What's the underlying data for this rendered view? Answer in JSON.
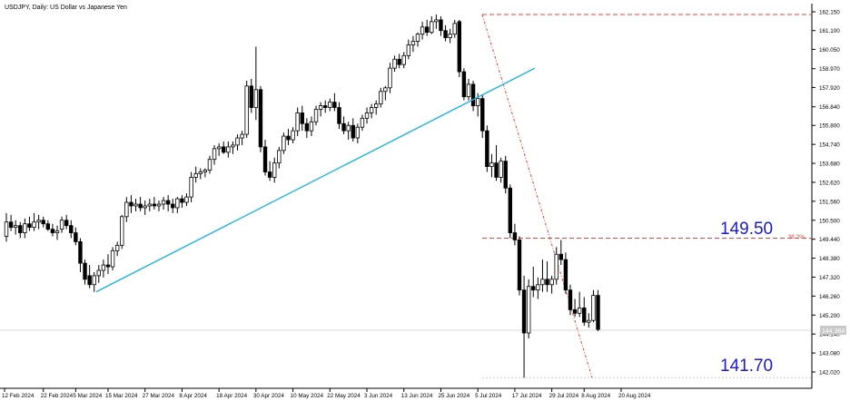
{
  "symbol_header": "USDJPY, Daily:  US Dollar vs Japanese Yen",
  "annotations": {
    "upper_level_label": "149.50",
    "lower_level_label": "141.70",
    "fib_label": "38.2%",
    "price_tag": "144.364"
  },
  "colors": {
    "background": "#ffffff",
    "candle": "#000000",
    "trendline": "#1fb4e6",
    "dashed_level": "#e2443e",
    "fib_diagonal": "#e2443e",
    "level_text": "#1a1acc",
    "price_tag_bg": "#c8c8c8",
    "axis_text": "#000000"
  },
  "chart_data": {
    "type": "candlestick",
    "title": "USDJPY, Daily:  US Dollar vs Japanese Yen",
    "y_axis_ticks": [
      "162.150",
      "161.100",
      "160.050",
      "158.970",
      "157.920",
      "156.840",
      "155.800",
      "154.740",
      "153.680",
      "152.620",
      "151.560",
      "150.500",
      "149.440",
      "148.380",
      "147.320",
      "146.260",
      "145.200",
      "144.140",
      "143.080",
      "142.020"
    ],
    "x_axis_ticks": [
      "12 Feb 2024",
      "22 Feb 2024",
      "5 Mar 2024",
      "15 Mar 2024",
      "27 Mar 2024",
      "8 Apr 2024",
      "18 Apr 2024",
      "30 Apr 2024",
      "10 May 2024",
      "22 May 2024",
      "3 Jun 2024",
      "13 Jun 2024",
      "25 Jun 2024",
      "5 Jul 2024",
      "17 Jul 2024",
      "29 Jul 2024",
      "8 Aug 2024",
      "20 Aug 2024"
    ],
    "ylim": [
      141.6,
      162.6
    ],
    "grid": false,
    "levels": {
      "upper_dashed": 162.0,
      "fib_38_2": 149.5,
      "low_dashed": 141.7,
      "current_price": 144.364
    },
    "trendline": {
      "start": {
        "date": "5 Mar 2024",
        "price": 146.5
      },
      "end": {
        "date": "16 Jul 2024",
        "price": 159.0
      }
    },
    "fib_diagonal": {
      "start": {
        "date": "3 Jul 2024",
        "price": 162.0
      },
      "end": {
        "date": "5 Aug 2024",
        "price": 141.7
      }
    },
    "ohlc": [
      {
        "o": 149.6,
        "h": 150.9,
        "l": 149.3,
        "c": 150.4
      },
      {
        "o": 150.4,
        "h": 150.8,
        "l": 149.9,
        "c": 150.1
      },
      {
        "o": 150.1,
        "h": 150.5,
        "l": 149.7,
        "c": 150.2
      },
      {
        "o": 150.2,
        "h": 150.4,
        "l": 149.5,
        "c": 149.8
      },
      {
        "o": 149.8,
        "h": 150.6,
        "l": 149.5,
        "c": 150.3
      },
      {
        "o": 150.3,
        "h": 150.7,
        "l": 149.9,
        "c": 150.1
      },
      {
        "o": 150.1,
        "h": 150.9,
        "l": 149.9,
        "c": 150.4
      },
      {
        "o": 150.4,
        "h": 150.8,
        "l": 150.0,
        "c": 150.5
      },
      {
        "o": 150.5,
        "h": 150.7,
        "l": 150.1,
        "c": 150.3
      },
      {
        "o": 150.3,
        "h": 150.5,
        "l": 149.9,
        "c": 150.0
      },
      {
        "o": 150.0,
        "h": 150.3,
        "l": 149.6,
        "c": 149.8
      },
      {
        "o": 149.8,
        "h": 150.2,
        "l": 149.4,
        "c": 149.9
      },
      {
        "o": 150.0,
        "h": 150.7,
        "l": 149.8,
        "c": 150.5
      },
      {
        "o": 150.5,
        "h": 150.8,
        "l": 150.0,
        "c": 150.2
      },
      {
        "o": 150.2,
        "h": 150.5,
        "l": 149.5,
        "c": 149.8
      },
      {
        "o": 149.8,
        "h": 150.1,
        "l": 149.1,
        "c": 149.3
      },
      {
        "o": 149.3,
        "h": 149.5,
        "l": 147.6,
        "c": 148.1
      },
      {
        "o": 148.1,
        "h": 148.3,
        "l": 146.9,
        "c": 147.2
      },
      {
        "o": 147.4,
        "h": 148.0,
        "l": 146.7,
        "c": 146.9
      },
      {
        "o": 146.9,
        "h": 147.6,
        "l": 146.5,
        "c": 147.4
      },
      {
        "o": 147.4,
        "h": 148.0,
        "l": 147.0,
        "c": 147.7
      },
      {
        "o": 147.7,
        "h": 148.3,
        "l": 147.3,
        "c": 148.0
      },
      {
        "o": 148.0,
        "h": 148.6,
        "l": 147.5,
        "c": 147.9
      },
      {
        "o": 147.9,
        "h": 149.0,
        "l": 147.7,
        "c": 148.8
      },
      {
        "o": 148.8,
        "h": 149.3,
        "l": 148.5,
        "c": 149.1
      },
      {
        "o": 149.1,
        "h": 150.8,
        "l": 148.9,
        "c": 150.7
      },
      {
        "o": 150.7,
        "h": 151.8,
        "l": 150.4,
        "c": 151.5
      },
      {
        "o": 151.5,
        "h": 151.9,
        "l": 150.9,
        "c": 151.3
      },
      {
        "o": 151.3,
        "h": 151.7,
        "l": 151.0,
        "c": 151.4
      },
      {
        "o": 151.4,
        "h": 151.8,
        "l": 151.0,
        "c": 151.2
      },
      {
        "o": 151.2,
        "h": 151.6,
        "l": 150.8,
        "c": 151.3
      },
      {
        "o": 151.3,
        "h": 151.7,
        "l": 151.0,
        "c": 151.4
      },
      {
        "o": 151.4,
        "h": 151.8,
        "l": 151.1,
        "c": 151.3
      },
      {
        "o": 151.3,
        "h": 151.6,
        "l": 151.0,
        "c": 151.4
      },
      {
        "o": 151.4,
        "h": 151.8,
        "l": 151.1,
        "c": 151.6
      },
      {
        "o": 151.6,
        "h": 151.9,
        "l": 151.0,
        "c": 151.4
      },
      {
        "o": 151.4,
        "h": 151.7,
        "l": 150.9,
        "c": 151.2
      },
      {
        "o": 151.2,
        "h": 151.8,
        "l": 150.9,
        "c": 151.7
      },
      {
        "o": 151.7,
        "h": 151.9,
        "l": 151.2,
        "c": 151.5
      },
      {
        "o": 151.5,
        "h": 152.0,
        "l": 151.3,
        "c": 151.8
      },
      {
        "o": 151.8,
        "h": 153.2,
        "l": 151.5,
        "c": 152.9
      },
      {
        "o": 152.9,
        "h": 153.5,
        "l": 152.6,
        "c": 153.1
      },
      {
        "o": 153.1,
        "h": 153.4,
        "l": 152.8,
        "c": 153.2
      },
      {
        "o": 153.2,
        "h": 153.4,
        "l": 152.9,
        "c": 153.3
      },
      {
        "o": 153.3,
        "h": 154.1,
        "l": 153.1,
        "c": 153.9
      },
      {
        "o": 153.9,
        "h": 154.7,
        "l": 153.6,
        "c": 154.5
      },
      {
        "o": 154.5,
        "h": 154.8,
        "l": 154.1,
        "c": 154.6
      },
      {
        "o": 154.6,
        "h": 154.9,
        "l": 154.2,
        "c": 154.3
      },
      {
        "o": 154.3,
        "h": 154.9,
        "l": 154.0,
        "c": 154.6
      },
      {
        "o": 154.6,
        "h": 154.9,
        "l": 154.2,
        "c": 154.7
      },
      {
        "o": 154.7,
        "h": 155.3,
        "l": 154.4,
        "c": 155.1
      },
      {
        "o": 155.1,
        "h": 155.5,
        "l": 154.7,
        "c": 155.3
      },
      {
        "o": 155.3,
        "h": 158.3,
        "l": 155.1,
        "c": 158.0
      },
      {
        "o": 158.0,
        "h": 158.4,
        "l": 156.5,
        "c": 156.8
      },
      {
        "o": 156.8,
        "h": 160.2,
        "l": 156.1,
        "c": 157.8
      },
      {
        "o": 157.8,
        "h": 158.0,
        "l": 154.3,
        "c": 154.6
      },
      {
        "o": 154.6,
        "h": 155.0,
        "l": 153.0,
        "c": 153.2
      },
      {
        "o": 153.2,
        "h": 153.8,
        "l": 152.7,
        "c": 152.9
      },
      {
        "o": 152.9,
        "h": 154.0,
        "l": 152.6,
        "c": 153.7
      },
      {
        "o": 153.7,
        "h": 154.6,
        "l": 153.4,
        "c": 154.4
      },
      {
        "o": 154.4,
        "h": 155.4,
        "l": 154.2,
        "c": 155.2
      },
      {
        "o": 155.2,
        "h": 155.6,
        "l": 154.7,
        "c": 155.0
      },
      {
        "o": 155.0,
        "h": 155.7,
        "l": 154.8,
        "c": 155.5
      },
      {
        "o": 155.5,
        "h": 156.8,
        "l": 155.2,
        "c": 156.5
      },
      {
        "o": 156.5,
        "h": 156.9,
        "l": 155.5,
        "c": 155.9
      },
      {
        "o": 155.9,
        "h": 156.2,
        "l": 155.1,
        "c": 155.5
      },
      {
        "o": 155.5,
        "h": 156.3,
        "l": 155.2,
        "c": 156.0
      },
      {
        "o": 156.0,
        "h": 156.9,
        "l": 155.8,
        "c": 156.7
      },
      {
        "o": 156.7,
        "h": 157.1,
        "l": 156.3,
        "c": 156.9
      },
      {
        "o": 156.9,
        "h": 157.2,
        "l": 156.5,
        "c": 156.8
      },
      {
        "o": 156.8,
        "h": 157.3,
        "l": 156.6,
        "c": 157.1
      },
      {
        "o": 157.1,
        "h": 157.6,
        "l": 156.6,
        "c": 156.8
      },
      {
        "o": 156.8,
        "h": 157.1,
        "l": 155.6,
        "c": 155.9
      },
      {
        "o": 155.9,
        "h": 156.3,
        "l": 155.3,
        "c": 155.5
      },
      {
        "o": 155.5,
        "h": 156.0,
        "l": 155.0,
        "c": 155.8
      },
      {
        "o": 155.8,
        "h": 156.2,
        "l": 154.9,
        "c": 155.1
      },
      {
        "o": 155.1,
        "h": 155.9,
        "l": 154.8,
        "c": 155.7
      },
      {
        "o": 155.7,
        "h": 156.4,
        "l": 155.5,
        "c": 156.2
      },
      {
        "o": 156.2,
        "h": 156.8,
        "l": 155.9,
        "c": 156.5
      },
      {
        "o": 156.5,
        "h": 157.0,
        "l": 156.2,
        "c": 156.8
      },
      {
        "o": 156.8,
        "h": 157.2,
        "l": 156.4,
        "c": 157.0
      },
      {
        "o": 157.0,
        "h": 157.9,
        "l": 156.8,
        "c": 157.7
      },
      {
        "o": 157.7,
        "h": 158.0,
        "l": 157.2,
        "c": 157.9
      },
      {
        "o": 157.9,
        "h": 159.3,
        "l": 157.6,
        "c": 159.0
      },
      {
        "o": 159.0,
        "h": 159.7,
        "l": 158.8,
        "c": 159.5
      },
      {
        "o": 159.5,
        "h": 159.8,
        "l": 159.0,
        "c": 159.2
      },
      {
        "o": 159.2,
        "h": 159.9,
        "l": 159.0,
        "c": 159.7
      },
      {
        "o": 159.7,
        "h": 160.6,
        "l": 159.5,
        "c": 160.3
      },
      {
        "o": 160.3,
        "h": 160.8,
        "l": 159.9,
        "c": 160.5
      },
      {
        "o": 160.5,
        "h": 161.0,
        "l": 160.2,
        "c": 160.9
      },
      {
        "o": 160.9,
        "h": 161.6,
        "l": 160.6,
        "c": 161.3
      },
      {
        "o": 161.3,
        "h": 161.7,
        "l": 160.8,
        "c": 161.0
      },
      {
        "o": 161.0,
        "h": 161.9,
        "l": 160.9,
        "c": 161.6
      },
      {
        "o": 161.6,
        "h": 162.0,
        "l": 161.2,
        "c": 161.7
      },
      {
        "o": 161.7,
        "h": 161.9,
        "l": 160.8,
        "c": 161.1
      },
      {
        "o": 161.1,
        "h": 161.4,
        "l": 160.5,
        "c": 160.7
      },
      {
        "o": 160.7,
        "h": 161.2,
        "l": 160.4,
        "c": 160.9
      },
      {
        "o": 160.9,
        "h": 161.7,
        "l": 160.7,
        "c": 161.5
      },
      {
        "o": 161.6,
        "h": 161.7,
        "l": 158.5,
        "c": 158.8
      },
      {
        "o": 158.8,
        "h": 159.0,
        "l": 157.2,
        "c": 157.4
      },
      {
        "o": 157.4,
        "h": 158.4,
        "l": 157.2,
        "c": 158.1
      },
      {
        "o": 158.1,
        "h": 158.3,
        "l": 156.6,
        "c": 156.9
      },
      {
        "o": 156.9,
        "h": 157.6,
        "l": 156.3,
        "c": 157.3
      },
      {
        "o": 157.3,
        "h": 157.5,
        "l": 155.1,
        "c": 155.5
      },
      {
        "o": 155.5,
        "h": 155.8,
        "l": 153.2,
        "c": 153.5
      },
      {
        "o": 153.5,
        "h": 154.2,
        "l": 152.9,
        "c": 153.7
      },
      {
        "o": 153.7,
        "h": 154.7,
        "l": 152.7,
        "c": 152.9
      },
      {
        "o": 152.9,
        "h": 154.0,
        "l": 152.6,
        "c": 153.8
      },
      {
        "o": 153.8,
        "h": 154.1,
        "l": 152.0,
        "c": 152.3
      },
      {
        "o": 152.3,
        "h": 152.5,
        "l": 149.5,
        "c": 149.8
      },
      {
        "o": 149.8,
        "h": 150.3,
        "l": 149.1,
        "c": 149.4
      },
      {
        "o": 149.4,
        "h": 149.6,
        "l": 146.3,
        "c": 146.6
      },
      {
        "o": 146.6,
        "h": 147.4,
        "l": 141.7,
        "c": 144.2
      },
      {
        "o": 144.2,
        "h": 147.2,
        "l": 143.9,
        "c": 146.8
      },
      {
        "o": 146.8,
        "h": 147.9,
        "l": 146.2,
        "c": 146.6
      },
      {
        "o": 146.6,
        "h": 147.3,
        "l": 146.1,
        "c": 146.9
      },
      {
        "o": 146.9,
        "h": 148.3,
        "l": 146.5,
        "c": 147.2
      },
      {
        "o": 147.2,
        "h": 148.2,
        "l": 146.5,
        "c": 146.9
      },
      {
        "o": 146.9,
        "h": 147.4,
        "l": 146.4,
        "c": 147.2
      },
      {
        "o": 147.2,
        "h": 149.0,
        "l": 146.9,
        "c": 148.6
      },
      {
        "o": 148.6,
        "h": 149.4,
        "l": 148.0,
        "c": 148.3
      },
      {
        "o": 148.3,
        "h": 148.7,
        "l": 146.4,
        "c": 146.6
      },
      {
        "o": 146.6,
        "h": 146.9,
        "l": 145.2,
        "c": 145.5
      },
      {
        "o": 145.5,
        "h": 146.1,
        "l": 145.1,
        "c": 145.3
      },
      {
        "o": 145.3,
        "h": 146.5,
        "l": 145.1,
        "c": 145.6
      },
      {
        "o": 145.6,
        "h": 146.2,
        "l": 144.6,
        "c": 144.8
      },
      {
        "o": 144.8,
        "h": 145.3,
        "l": 144.5,
        "c": 144.9
      },
      {
        "o": 144.9,
        "h": 146.6,
        "l": 144.8,
        "c": 146.3
      },
      {
        "o": 146.3,
        "h": 146.6,
        "l": 144.3,
        "c": 144.4
      }
    ]
  }
}
